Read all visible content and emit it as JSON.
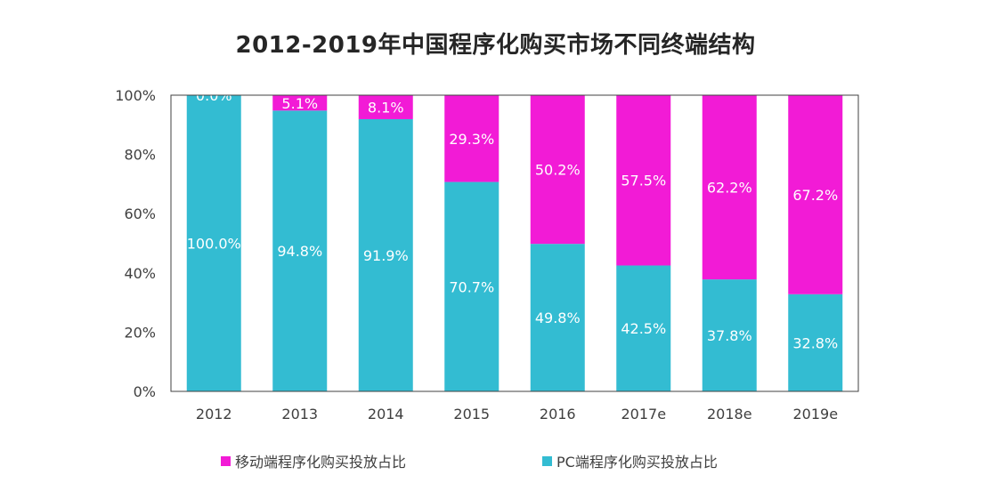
{
  "colors": {
    "mobile": "#F21BD6",
    "pc": "#33BCD2"
  },
  "chart_data": {
    "type": "bar",
    "stacked": true,
    "title": "2012-2019年中国程序化购买市场不同终端结构",
    "categories": [
      "2012",
      "2013",
      "2014",
      "2015",
      "2016",
      "2017e",
      "2018e",
      "2019e"
    ],
    "series": [
      {
        "name": "PC端程序化购买投放占比",
        "values": [
          100.0,
          94.8,
          91.9,
          70.7,
          49.8,
          42.5,
          37.8,
          32.8
        ],
        "labels": [
          "100.0%",
          "94.8%",
          "91.9%",
          "70.7%",
          "49.8%",
          "42.5%",
          "37.8%",
          "32.8%"
        ]
      },
      {
        "name": "移动端程序化购买投放占比",
        "values": [
          0.0,
          5.1,
          8.1,
          29.3,
          50.2,
          57.5,
          62.2,
          67.2
        ],
        "labels": [
          "0.0%",
          "5.1%",
          "8.1%",
          "29.3%",
          "50.2%",
          "57.5%",
          "62.2%",
          "67.2%"
        ]
      }
    ],
    "yticks": [
      "0%",
      "20%",
      "40%",
      "60%",
      "80%",
      "100%"
    ],
    "ylim": [
      0,
      100
    ],
    "grid": false,
    "legend_position": "bottom"
  }
}
